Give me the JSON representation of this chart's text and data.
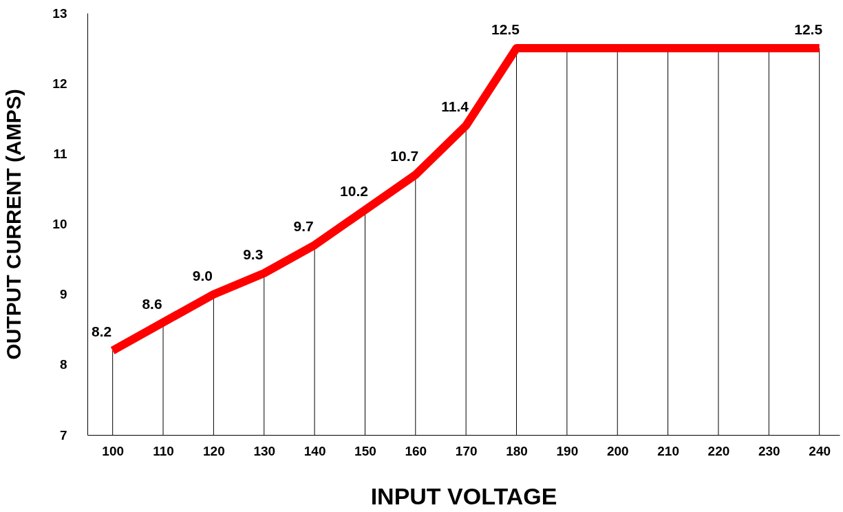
{
  "chart_data": {
    "type": "line",
    "xlabel": "INPUT VOLTAGE",
    "ylabel": "OUTPUT CURRENT (AMPS)",
    "x": [
      100,
      110,
      120,
      130,
      140,
      150,
      160,
      170,
      180,
      190,
      200,
      210,
      220,
      230,
      240
    ],
    "series": [
      {
        "color": "#ff0000",
        "values": [
          8.2,
          8.6,
          9.0,
          9.3,
          9.7,
          10.2,
          10.7,
          11.4,
          12.5,
          12.5,
          12.5,
          12.5,
          12.5,
          12.5,
          12.5
        ],
        "value_labels": [
          "8.2",
          "8.6",
          "9.0",
          "9.3",
          "9.7",
          "10.2",
          "10.7",
          "11.4",
          "12.5",
          null,
          null,
          null,
          null,
          null,
          "12.5"
        ]
      }
    ],
    "xlim": [
      95,
      244
    ],
    "xticks": [
      100,
      110,
      120,
      130,
      140,
      150,
      160,
      170,
      180,
      190,
      200,
      210,
      220,
      230,
      240
    ],
    "ylim": [
      7,
      13
    ],
    "yticks": [
      7,
      8,
      9,
      10,
      11,
      12,
      13
    ],
    "grid": "x",
    "marker": "none",
    "line_style": "solid"
  }
}
